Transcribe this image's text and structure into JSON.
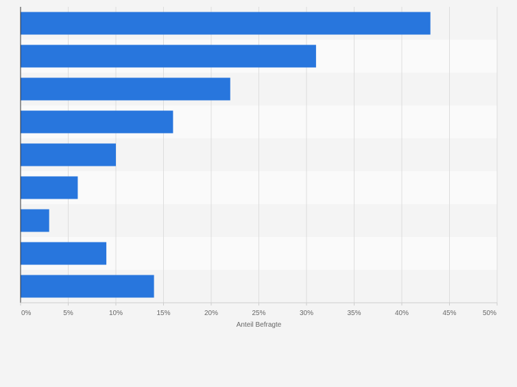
{
  "chart_data": {
    "type": "bar",
    "orientation": "horizontal",
    "categories": [
      "",
      "",
      "",
      "",
      "",
      "",
      "",
      "",
      ""
    ],
    "values": [
      43,
      31,
      22,
      16,
      10,
      6,
      3,
      9,
      14
    ],
    "xlabel": "Anteil Befragte",
    "xlim": [
      0,
      50
    ],
    "xticks": [
      0,
      5,
      10,
      15,
      20,
      25,
      30,
      35,
      40,
      45,
      50
    ],
    "tick_labels": [
      "0%",
      "5%",
      "10%",
      "15%",
      "20%",
      "25%",
      "30%",
      "35%",
      "40%",
      "45%",
      "50%"
    ],
    "grid": true,
    "bar_color": "#2876dd"
  }
}
